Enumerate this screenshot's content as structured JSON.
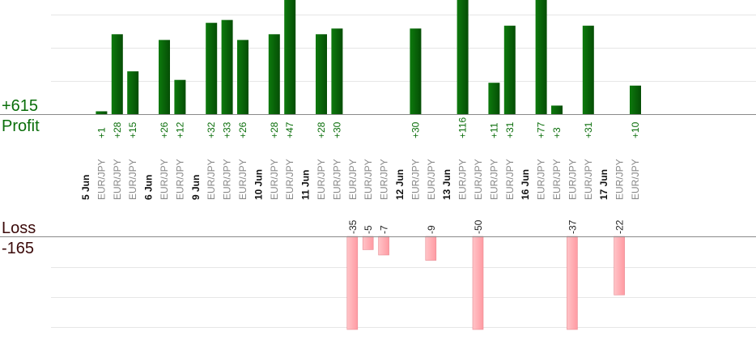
{
  "summary": {
    "total_profit": "+615",
    "profit_label": "Profit",
    "loss_label": "Loss",
    "total_loss": "-165"
  },
  "colors": {
    "profit_bar": "#0a6a0a",
    "profit_text": "#0a6e0a",
    "loss_bar": "#ffb3b8",
    "loss_text": "#222222",
    "category_text": "#888888"
  },
  "chart_data": {
    "type": "bar",
    "profit_scale_max": 40,
    "loss_scale_max": 35,
    "groups": [
      {
        "date": "5 Jun",
        "trades": [
          {
            "pair": "EUR/JPY",
            "value": 1,
            "label": "+1"
          },
          {
            "pair": "EUR/JPY",
            "value": 28,
            "label": "+28"
          },
          {
            "pair": "EUR/JPY",
            "value": 15,
            "label": "+15"
          }
        ]
      },
      {
        "date": "6 Jun",
        "trades": [
          {
            "pair": "EUR/JPY",
            "value": 26,
            "label": "+26"
          },
          {
            "pair": "EUR/JPY",
            "value": 12,
            "label": "+12"
          }
        ]
      },
      {
        "date": "9 Jun",
        "trades": [
          {
            "pair": "EUR/JPY",
            "value": 32,
            "label": "+32"
          },
          {
            "pair": "EUR/JPY",
            "value": 33,
            "label": "+33"
          },
          {
            "pair": "EUR/JPY",
            "value": 26,
            "label": "+26"
          }
        ]
      },
      {
        "date": "10 Jun",
        "trades": [
          {
            "pair": "EUR/JPY",
            "value": 28,
            "label": "+28"
          },
          {
            "pair": "EUR/JPY",
            "value": 47,
            "label": "+47"
          }
        ]
      },
      {
        "date": "11 Jun",
        "trades": [
          {
            "pair": "EUR/JPY",
            "value": 28,
            "label": "+28"
          },
          {
            "pair": "EUR/JPY",
            "value": 30,
            "label": "+30"
          },
          {
            "pair": "EUR/JPY",
            "value": -35,
            "label": "-35"
          },
          {
            "pair": "EUR/JPY",
            "value": -5,
            "label": "-5"
          },
          {
            "pair": "EUR/JPY",
            "value": -7,
            "label": "-7"
          }
        ]
      },
      {
        "date": "12 Jun",
        "trades": [
          {
            "pair": "EUR/JPY",
            "value": 30,
            "label": "+30"
          },
          {
            "pair": "EUR/JPY",
            "value": -9,
            "label": "-9"
          }
        ]
      },
      {
        "date": "13 Jun",
        "trades": [
          {
            "pair": "EUR/JPY",
            "value": 116,
            "label": "+116"
          },
          {
            "pair": "EUR/JPY",
            "value": -50,
            "label": "-50"
          },
          {
            "pair": "EUR/JPY",
            "value": 11,
            "label": "+11"
          },
          {
            "pair": "EUR/JPY",
            "value": 31,
            "label": "+31"
          }
        ]
      },
      {
        "date": "16 Jun",
        "trades": [
          {
            "pair": "EUR/JPY",
            "value": 77,
            "label": "+77"
          },
          {
            "pair": "EUR/JPY",
            "value": 3,
            "label": "+3"
          },
          {
            "pair": "EUR/JPY",
            "value": -37,
            "label": "-37"
          },
          {
            "pair": "EUR/JPY",
            "value": 31,
            "label": "+31"
          }
        ]
      },
      {
        "date": "17 Jun",
        "trades": [
          {
            "pair": "EUR/JPY",
            "value": -22,
            "label": "-22"
          },
          {
            "pair": "EUR/JPY",
            "value": 10,
            "label": "+10"
          }
        ]
      }
    ]
  }
}
